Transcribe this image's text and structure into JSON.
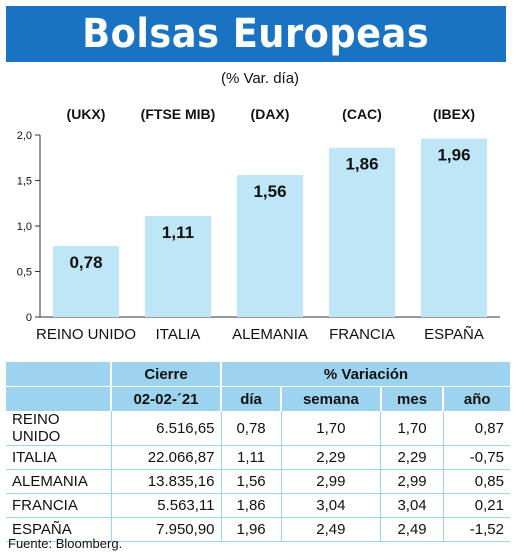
{
  "title": "Bolsas Europeas",
  "subtitle": "(% Var. día)",
  "chart_data": {
    "type": "bar",
    "categories": [
      "REINO UNIDO",
      "ITALIA",
      "ALEMANIA",
      "FRANCIA",
      "ESPAÑA"
    ],
    "index_labels": [
      "(UKX)",
      "(FTSE MIB)",
      "(DAX)",
      "(CAC)",
      "(IBEX)"
    ],
    "values": [
      0.78,
      1.11,
      1.56,
      1.86,
      1.96
    ],
    "value_labels": [
      "0,78",
      "1,11",
      "1,56",
      "1,86",
      "1,96"
    ],
    "yticks": [
      "0",
      "0,5",
      "1,0",
      "1,5",
      "2,0"
    ],
    "ylim": [
      0,
      2.0
    ],
    "bar_color": "#bfe6f7",
    "grid": false
  },
  "table": {
    "header_cierre": "Cierre",
    "header_variacion": "% Variación",
    "header_date": "02-02-´21",
    "header_dia": "día",
    "header_semana": "semana",
    "header_mes": "mes",
    "header_ano": "año",
    "rows": [
      {
        "name": "REINO UNIDO",
        "cierre": "6.516,65",
        "dia": "0,78",
        "semana": "1,70",
        "mes": "1,70",
        "ano": "0,87"
      },
      {
        "name": "ITALIA",
        "cierre": "22.066,87",
        "dia": "1,11",
        "semana": "2,29",
        "mes": "2,29",
        "ano": "-0,75"
      },
      {
        "name": "ALEMANIA",
        "cierre": "13.835,16",
        "dia": "1,56",
        "semana": "2,99",
        "mes": "2,99",
        "ano": "0,85"
      },
      {
        "name": "FRANCIA",
        "cierre": "5.563,11",
        "dia": "1,86",
        "semana": "3,04",
        "mes": "3,04",
        "ano": "0,21"
      },
      {
        "name": "ESPAÑA",
        "cierre": "7.950,90",
        "dia": "1,96",
        "semana": "2,49",
        "mes": "2,49",
        "ano": "-1,52"
      }
    ]
  },
  "source": "Fuente: Bloomberg.",
  "colors": {
    "header_bg": "#1a73c2",
    "accent": "#9dd3ee",
    "bar": "#bfe6f7"
  }
}
